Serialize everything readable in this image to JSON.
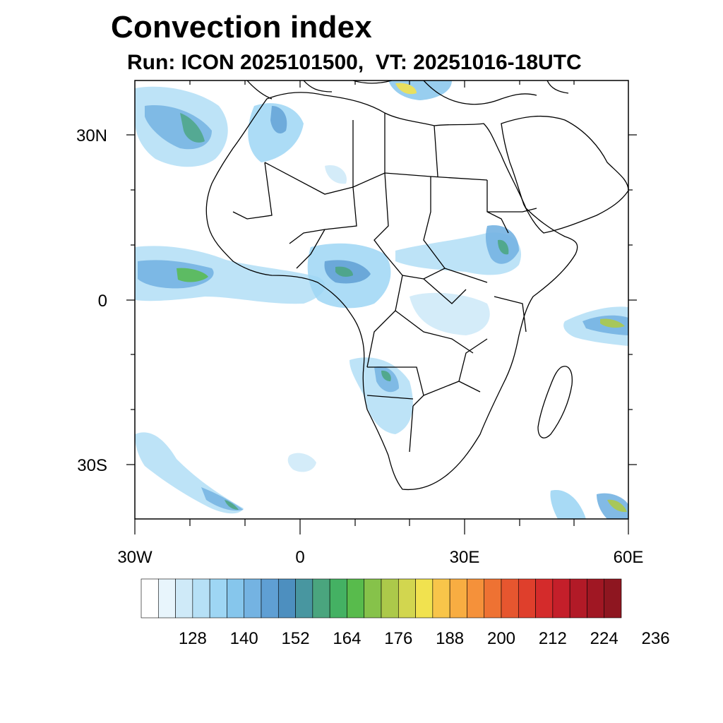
{
  "title": "Convection index",
  "subtitle": "Run: ICON 2025101500,  VT: 20251016-18UTC",
  "map": {
    "lon_range": [
      -30,
      60
    ],
    "lat_range": [
      -40,
      40
    ],
    "lat_labels": [
      {
        "lat": 30,
        "text": "30N"
      },
      {
        "lat": 0,
        "text": "0"
      },
      {
        "lat": -30,
        "text": "30S"
      }
    ],
    "lon_labels": [
      {
        "lon": -30,
        "text": "30W"
      },
      {
        "lon": 0,
        "text": "0"
      },
      {
        "lon": 30,
        "text": "30E"
      },
      {
        "lon": 60,
        "text": "60E"
      }
    ]
  },
  "colorbar": {
    "colors": [
      "#ffffff",
      "#e8f5fc",
      "#cfeaf8",
      "#b6e0f6",
      "#9ed6f4",
      "#86c6ec",
      "#74b3e2",
      "#5f9fd4",
      "#4d8fbf",
      "#4896a0",
      "#4aa57e",
      "#44b163",
      "#58bb4c",
      "#86c24a",
      "#acc94a",
      "#d2d64f",
      "#f1e24f",
      "#f8c54a",
      "#f8ad42",
      "#f5913a",
      "#ee7233",
      "#e6562f",
      "#df3f2c",
      "#d42b2b",
      "#c41f2a",
      "#b21a27",
      "#a01723",
      "#8e1620"
    ],
    "labels": [
      "128",
      "140",
      "152",
      "164",
      "176",
      "188",
      "200",
      "212",
      "224",
      "236"
    ]
  }
}
